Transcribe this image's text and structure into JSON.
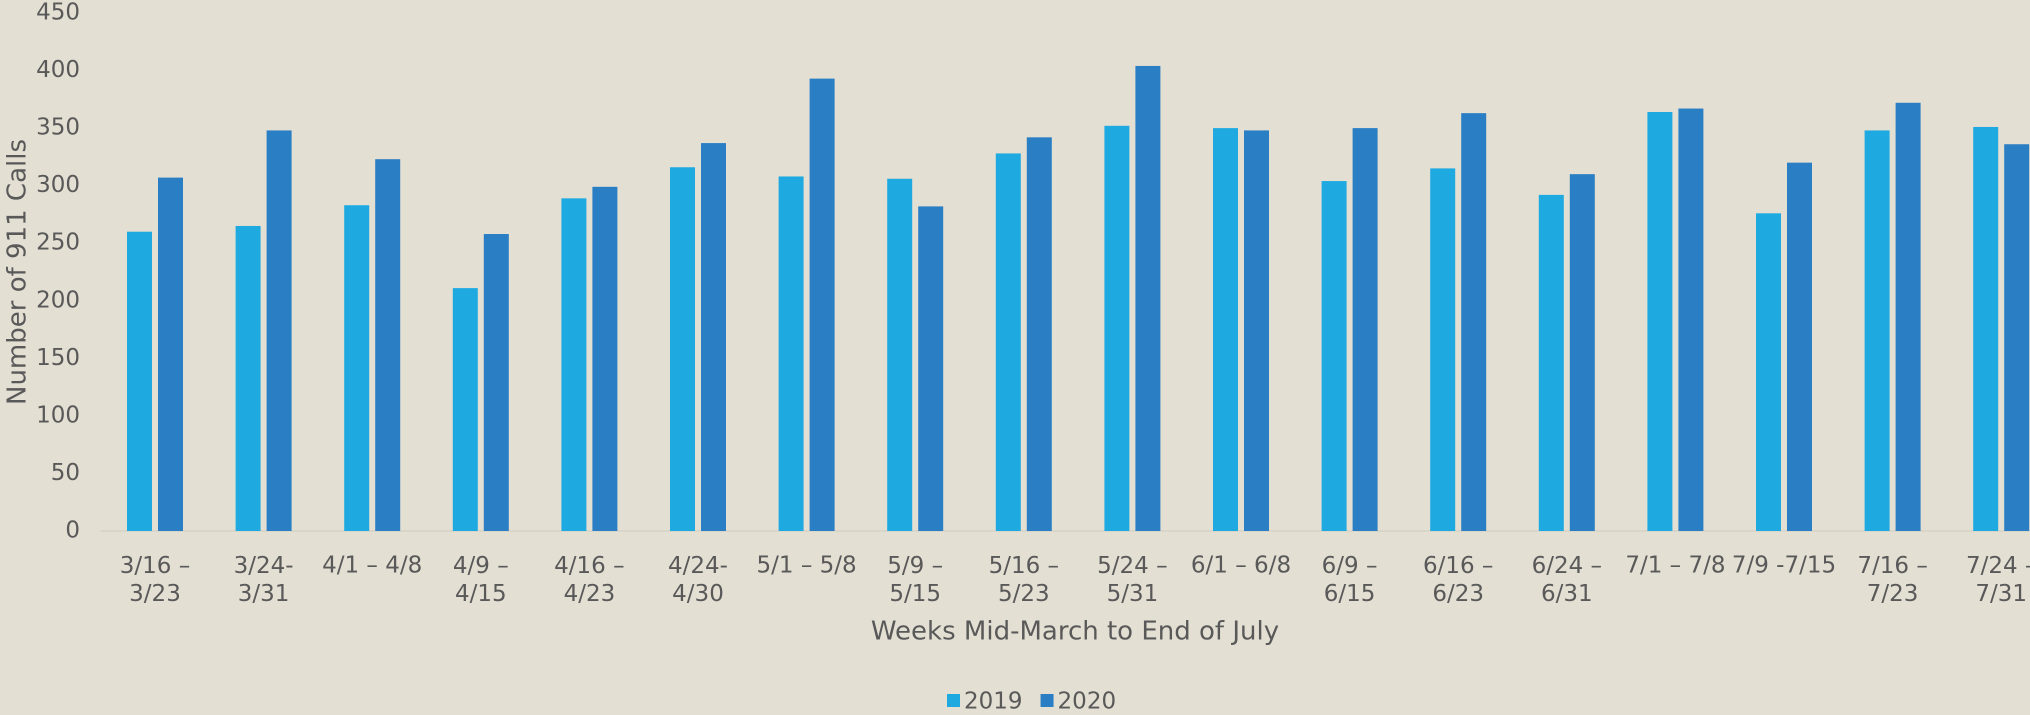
{
  "chart_data": {
    "type": "bar",
    "x_label": "Weeks Mid-March to End of July",
    "y_label": "Number of 911 Calls",
    "categories": [
      "3/16 –\n3/23",
      "3/24-\n3/31",
      "4/1 – 4/8",
      "4/9 –\n4/15",
      "4/16 –\n4/23",
      "4/24-\n4/30",
      "5/1 – 5/8",
      "5/9 –\n5/15",
      "5/16 –\n5/23",
      "5/24 –\n5/31",
      "6/1 – 6/8",
      "6/9 –\n6/15",
      "6/16 –\n6/23",
      "6/24 –\n6/31",
      "7/1 – 7/8",
      "7/9 -7/15",
      "7/16 –\n7/23",
      "7/24 –\n7/31"
    ],
    "series": [
      {
        "name": "2019",
        "color": "#1eaae1",
        "values": [
          260,
          265,
          283,
          211,
          289,
          316,
          308,
          306,
          328,
          352,
          350,
          304,
          315,
          292,
          364,
          276,
          348,
          351
        ]
      },
      {
        "name": "2020",
        "color": "#2a7fc4",
        "values": [
          307,
          348,
          323,
          258,
          299,
          337,
          393,
          282,
          342,
          404,
          348,
          350,
          363,
          310,
          367,
          320,
          372,
          336
        ]
      }
    ],
    "ylim": [
      0,
      450
    ],
    "yticks": [
      0,
      50,
      100,
      150,
      200,
      250,
      300,
      350,
      400,
      450
    ],
    "legend": "bottom"
  }
}
